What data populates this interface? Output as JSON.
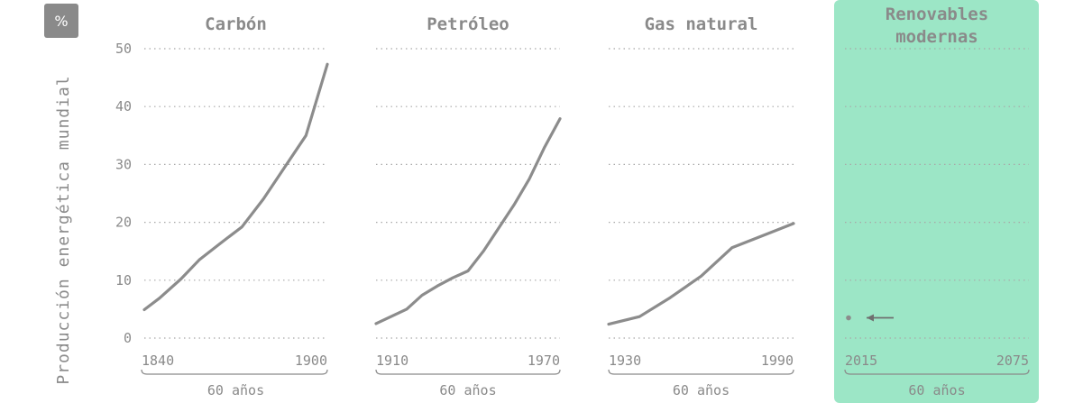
{
  "unit_badge": "%",
  "highlight_color": "#9ce6c6",
  "line_color": "#8c8c8c",
  "chart_data": {
    "type": "line",
    "ylabel": "Producción energética mundial",
    "ylim": [
      0,
      50
    ],
    "yticks": [
      0,
      10,
      20,
      30,
      40,
      50
    ],
    "grid": true,
    "panels": [
      {
        "title": "Carbón",
        "x_start": "1840",
        "x_end": "1900",
        "span_label": "60 años",
        "x": [
          0,
          5,
          12,
          18,
          25,
          32,
          39,
          46,
          53,
          60
        ],
        "values": [
          4.9,
          6.9,
          10.2,
          13.5,
          16.4,
          19.2,
          24,
          29.5,
          35,
          47.3
        ]
      },
      {
        "title": "Petróleo",
        "x_start": "1910",
        "x_end": "1970",
        "span_label": "60 años",
        "x": [
          0,
          10,
          15,
          20,
          25,
          30,
          35,
          40,
          45,
          50,
          55,
          60
        ],
        "values": [
          2.5,
          5,
          7.4,
          9,
          10.4,
          11.6,
          15,
          19,
          23,
          27.5,
          33,
          37.9
        ]
      },
      {
        "title": "Gas natural",
        "x_start": "1930",
        "x_end": "1990",
        "span_label": "60 años",
        "x": [
          0,
          10,
          20,
          30,
          40,
          50,
          60
        ],
        "values": [
          2.4,
          3.7,
          7,
          10.7,
          15.6,
          17.7,
          19.8
        ]
      },
      {
        "title": "Renovables modernas",
        "x_start": "2015",
        "x_end": "2075",
        "span_label": "60 años",
        "highlight": true,
        "x": [
          0
        ],
        "values": [
          3.5
        ]
      }
    ]
  }
}
